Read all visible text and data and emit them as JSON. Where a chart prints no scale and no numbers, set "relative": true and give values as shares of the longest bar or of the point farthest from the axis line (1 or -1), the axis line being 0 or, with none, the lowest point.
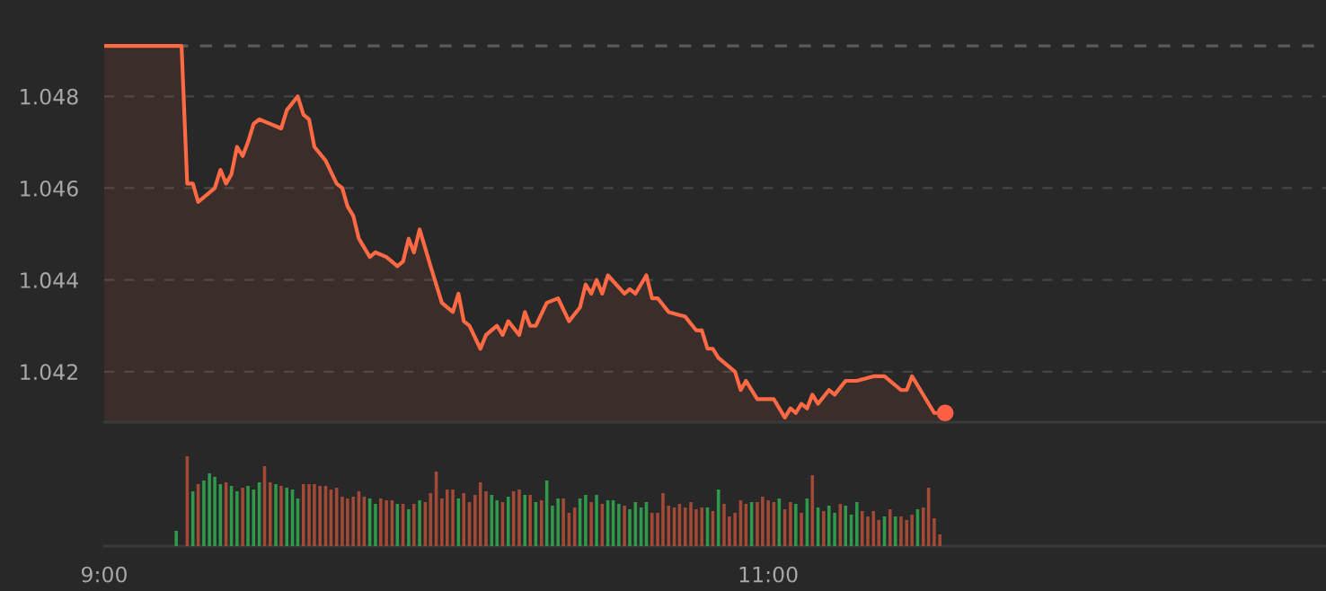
{
  "chart_data": [
    {
      "type": "area",
      "xlim": [
        9,
        12.68
      ],
      "ylim": [
        1.0409,
        1.0501
      ],
      "yticks": [
        1.042,
        1.044,
        1.046,
        1.048
      ],
      "grid": "y",
      "tick_labels": "y",
      "ref_lines": [
        {
          "axis": "y",
          "value": 1.0491,
          "color": "#5a5a5a",
          "line_style": "dashed"
        }
      ],
      "series": [
        {
          "color": "#ff6a45",
          "x": [
            9,
            9.233,
            9.25,
            9.267,
            9.283,
            9.333,
            9.35,
            9.367,
            9.383,
            9.4,
            9.417,
            9.433,
            9.45,
            9.467,
            9.5,
            9.533,
            9.55,
            9.583,
            9.6,
            9.617,
            9.633,
            9.667,
            9.7,
            9.717,
            9.733,
            9.75,
            9.767,
            9.8,
            9.817,
            9.85,
            9.883,
            9.9,
            9.917,
            9.933,
            9.95,
            9.983,
            10.017,
            10.05,
            10.067,
            10.083,
            10.1,
            10.133,
            10.15,
            10.183,
            10.2,
            10.217,
            10.25,
            10.267,
            10.283,
            10.3,
            10.333,
            10.367,
            10.4,
            10.433,
            10.45,
            10.467,
            10.483,
            10.5,
            10.517,
            10.567,
            10.583,
            10.6,
            10.633,
            10.65,
            10.667,
            10.7,
            10.75,
            10.783,
            10.8,
            10.817,
            10.833,
            10.85,
            10.9,
            10.917,
            10.933,
            10.967,
            11.017,
            11.05,
            11.067,
            11.083,
            11.1,
            11.117,
            11.133,
            11.15,
            11.183,
            11.2,
            11.233,
            11.267,
            11.317,
            11.35,
            11.4,
            11.417,
            11.433,
            11.5,
            11.533
          ],
          "values": [
            1.0491,
            1.0491,
            1.0461,
            1.0461,
            1.0457,
            1.046,
            1.0464,
            1.0461,
            1.0463,
            1.0469,
            1.0467,
            1.047,
            1.0474,
            1.0475,
            1.0474,
            1.0473,
            1.0477,
            1.048,
            1.0476,
            1.0475,
            1.0469,
            1.0466,
            1.0461,
            1.046,
            1.0456,
            1.0454,
            1.0449,
            1.0445,
            1.0446,
            1.0445,
            1.0443,
            1.0444,
            1.0449,
            1.0446,
            1.0451,
            1.0443,
            1.0435,
            1.0433,
            1.0437,
            1.0431,
            1.043,
            1.0425,
            1.0428,
            1.043,
            1.0428,
            1.0431,
            1.0428,
            1.0433,
            1.043,
            1.043,
            1.0435,
            1.0436,
            1.0431,
            1.0434,
            1.0439,
            1.0437,
            1.044,
            1.0437,
            1.0441,
            1.0437,
            1.0438,
            1.0437,
            1.0441,
            1.0436,
            1.0436,
            1.0433,
            1.0432,
            1.0429,
            1.0429,
            1.0425,
            1.0425,
            1.0423,
            1.042,
            1.0416,
            1.0418,
            1.0414,
            1.0414,
            1.041,
            1.0412,
            1.0411,
            1.0413,
            1.0412,
            1.0415,
            1.0413,
            1.0416,
            1.0415,
            1.0418,
            1.0418,
            1.0419,
            1.0419,
            1.0416,
            1.0416,
            1.0419,
            1.0411,
            1.0411
          ]
        },
        {
          "type": "scatter",
          "marker": "circle",
          "color": "#ff5f45",
          "x": [
            11.533
          ],
          "values": [
            1.0411
          ]
        }
      ]
    },
    {
      "type": "bar",
      "relative": true,
      "xlim": [
        9,
        12.68
      ],
      "xticks": [
        {
          "value": 9,
          "label": "9:00"
        },
        {
          "value": 11,
          "label": "11:00"
        }
      ],
      "tick_labels": "x",
      "x": [
        9.217,
        9.25,
        9.267,
        9.283,
        9.3,
        9.317,
        9.333,
        9.35,
        9.367,
        9.383,
        9.4,
        9.417,
        9.433,
        9.45,
        9.467,
        9.483,
        9.5,
        9.517,
        9.533,
        9.55,
        9.567,
        9.583,
        9.6,
        9.617,
        9.633,
        9.65,
        9.667,
        9.683,
        9.7,
        9.717,
        9.733,
        9.75,
        9.767,
        9.783,
        9.8,
        9.817,
        9.833,
        9.85,
        9.867,
        9.883,
        9.9,
        9.917,
        9.933,
        9.95,
        9.967,
        9.983,
        10,
        10.017,
        10.033,
        10.05,
        10.067,
        10.083,
        10.1,
        10.117,
        10.133,
        10.15,
        10.167,
        10.183,
        10.2,
        10.217,
        10.233,
        10.25,
        10.267,
        10.283,
        10.3,
        10.317,
        10.333,
        10.35,
        10.367,
        10.383,
        10.4,
        10.417,
        10.433,
        10.45,
        10.467,
        10.483,
        10.5,
        10.517,
        10.533,
        10.55,
        10.567,
        10.583,
        10.6,
        10.617,
        10.633,
        10.65,
        10.667,
        10.683,
        10.7,
        10.717,
        10.733,
        10.75,
        10.767,
        10.783,
        10.8,
        10.817,
        10.833,
        10.85,
        10.867,
        10.883,
        10.9,
        10.917,
        10.933,
        10.95,
        10.967,
        10.983,
        11,
        11.017,
        11.033,
        11.05,
        11.067,
        11.083,
        11.1,
        11.117,
        11.133,
        11.15,
        11.167,
        11.183,
        11.2,
        11.217,
        11.233,
        11.25,
        11.267,
        11.283,
        11.3,
        11.317,
        11.333,
        11.35,
        11.367,
        11.383,
        11.4,
        11.417,
        11.433,
        11.45,
        11.467,
        11.483,
        11.5,
        11.517
      ],
      "values": [
        0.17,
        1,
        0.61,
        0.69,
        0.73,
        0.81,
        0.77,
        0.69,
        0.71,
        0.67,
        0.61,
        0.65,
        0.67,
        0.63,
        0.71,
        0.89,
        0.71,
        0.69,
        0.67,
        0.65,
        0.63,
        0.53,
        0.69,
        0.69,
        0.69,
        0.67,
        0.67,
        0.63,
        0.65,
        0.55,
        0.53,
        0.55,
        0.61,
        0.55,
        0.53,
        0.47,
        0.53,
        0.51,
        0.51,
        0.47,
        0.47,
        0.41,
        0.47,
        0.51,
        0.49,
        0.59,
        0.83,
        0.53,
        0.63,
        0.63,
        0.53,
        0.59,
        0.49,
        0.57,
        0.71,
        0.61,
        0.57,
        0.51,
        0.49,
        0.55,
        0.61,
        0.63,
        0.57,
        0.57,
        0.49,
        0.51,
        0.73,
        0.45,
        0.53,
        0.53,
        0.37,
        0.43,
        0.53,
        0.57,
        0.49,
        0.57,
        0.47,
        0.51,
        0.51,
        0.47,
        0.45,
        0.41,
        0.49,
        0.43,
        0.49,
        0.37,
        0.37,
        0.59,
        0.45,
        0.43,
        0.47,
        0.43,
        0.49,
        0.41,
        0.43,
        0.43,
        0.39,
        0.63,
        0.47,
        0.33,
        0.37,
        0.51,
        0.47,
        0.49,
        0.49,
        0.55,
        0.51,
        0.49,
        0.53,
        0.41,
        0.49,
        0.47,
        0.37,
        0.53,
        0.79,
        0.43,
        0.39,
        0.45,
        0.37,
        0.47,
        0.45,
        0.35,
        0.49,
        0.39,
        0.33,
        0.39,
        0.29,
        0.33,
        0.41,
        0.33,
        0.33,
        0.29,
        0.35,
        0.41,
        0.43,
        0.65,
        0.31,
        0.13
      ],
      "colors": [
        "#2f9a4c",
        "#a34a36",
        "#2f9a4c",
        "#a34a36",
        "#2f9a4c",
        "#2f9a4c",
        "#2f9a4c",
        "#2f9a4c",
        "#a34a36",
        "#2f9a4c",
        "#2f9a4c",
        "#a34a36",
        "#2f9a4c",
        "#2f9a4c",
        "#2f9a4c",
        "#a34a36",
        "#a34a36",
        "#2f9a4c",
        "#a34a36",
        "#2f9a4c",
        "#2f9a4c",
        "#2f9a4c",
        "#a34a36",
        "#a34a36",
        "#a34a36",
        "#a34a36",
        "#a34a36",
        "#a34a36",
        "#a34a36",
        "#a34a36",
        "#a34a36",
        "#a34a36",
        "#a34a36",
        "#a34a36",
        "#2f9a4c",
        "#2f9a4c",
        "#a34a36",
        "#a34a36",
        "#a34a36",
        "#2f9a4c",
        "#a34a36",
        "#2f9a4c",
        "#a34a36",
        "#2f9a4c",
        "#a34a36",
        "#a34a36",
        "#a34a36",
        "#a34a36",
        "#a34a36",
        "#a34a36",
        "#2f9a4c",
        "#a34a36",
        "#a34a36",
        "#a34a36",
        "#a34a36",
        "#a34a36",
        "#2f9a4c",
        "#2f9a4c",
        "#a34a36",
        "#2f9a4c",
        "#a34a36",
        "#a34a36",
        "#2f9a4c",
        "#a34a36",
        "#2f9a4c",
        "#a34a36",
        "#2f9a4c",
        "#2f9a4c",
        "#2f9a4c",
        "#a34a36",
        "#a34a36",
        "#a34a36",
        "#2f9a4c",
        "#2f9a4c",
        "#a34a36",
        "#2f9a4c",
        "#a34a36",
        "#2f9a4c",
        "#2f9a4c",
        "#2f9a4c",
        "#a34a36",
        "#2f9a4c",
        "#2f9a4c",
        "#2f9a4c",
        "#2f9a4c",
        "#a34a36",
        "#a34a36",
        "#a34a36",
        "#a34a36",
        "#a34a36",
        "#a34a36",
        "#a34a36",
        "#a34a36",
        "#a34a36",
        "#a34a36",
        "#2f9a4c",
        "#a34a36",
        "#2f9a4c",
        "#a34a36",
        "#a34a36",
        "#a34a36",
        "#a34a36",
        "#a34a36",
        "#2f9a4c",
        "#a34a36",
        "#a34a36",
        "#a34a36",
        "#a34a36",
        "#2f9a4c",
        "#a34a36",
        "#a34a36",
        "#2f9a4c",
        "#a34a36",
        "#2f9a4c",
        "#a34a36",
        "#2f9a4c",
        "#a34a36",
        "#2f9a4c",
        "#2f9a4c",
        "#a34a36",
        "#2f9a4c",
        "#2f9a4c",
        "#2f9a4c",
        "#a34a36",
        "#a34a36",
        "#a34a36",
        "#a34a36",
        "#2f9a4c",
        "#a34a36",
        "#2f9a4c",
        "#a34a36",
        "#a34a36",
        "#a34a36",
        "#2f9a4c",
        "#a34a36",
        "#a34a36",
        "#a34a36",
        "#a34a36"
      ]
    }
  ]
}
